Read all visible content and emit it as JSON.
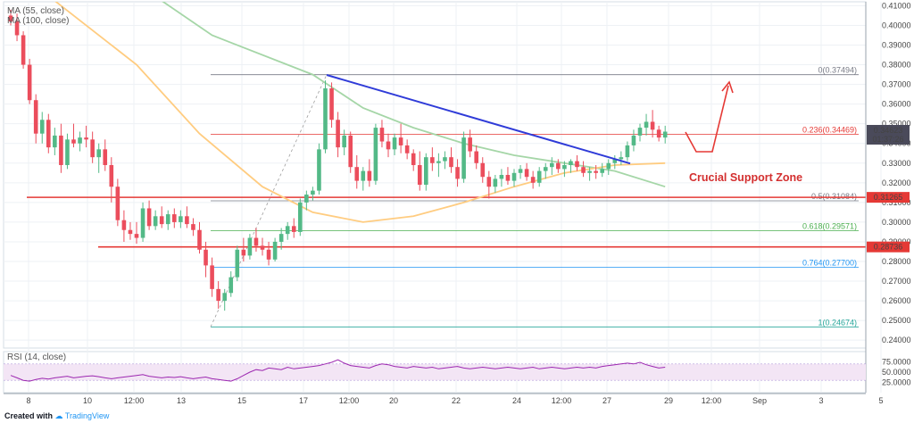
{
  "chart_data": {
    "type": "candlestick",
    "price_axis": {
      "min": 0.236,
      "max": 0.412,
      "ticks": [
        0.41,
        0.4,
        0.39,
        0.38,
        0.37,
        0.36,
        0.35,
        0.34,
        0.33,
        0.32,
        0.31,
        0.3,
        0.29,
        0.28,
        0.27,
        0.26,
        0.25,
        0.24
      ],
      "labels": [
        "0.41000",
        "0.40000",
        "0.39000",
        "0.38000",
        "0.37000",
        "0.36000",
        "0.35000",
        "0.34000",
        "0.33000",
        "0.32000",
        "0.31000",
        "0.30000",
        "0.29000",
        "0.28000",
        "0.27000",
        "0.26000",
        "0.25000",
        "0.24000"
      ]
    },
    "time_axis": {
      "labels": [
        "8",
        "10",
        "12:00",
        "13",
        "15",
        "17",
        "12:00",
        "20",
        "22",
        "24",
        "12:00",
        "27",
        "29",
        "12:00",
        "Sep",
        "3",
        "5"
      ]
    },
    "legend": [
      "MA (55, close)",
      "MA (100, close)"
    ],
    "last_price": "0.34623",
    "countdown": "01:37:26",
    "candles": [
      [
        0.405,
        0.408,
        0.4,
        0.402
      ],
      [
        0.402,
        0.406,
        0.392,
        0.395
      ],
      [
        0.395,
        0.397,
        0.378,
        0.38
      ],
      [
        0.38,
        0.383,
        0.36,
        0.362
      ],
      [
        0.362,
        0.365,
        0.34,
        0.345
      ],
      [
        0.345,
        0.356,
        0.34,
        0.352
      ],
      [
        0.352,
        0.355,
        0.335,
        0.338
      ],
      [
        0.338,
        0.348,
        0.334,
        0.344
      ],
      [
        0.344,
        0.35,
        0.325,
        0.329
      ],
      [
        0.329,
        0.345,
        0.327,
        0.342
      ],
      [
        0.342,
        0.35,
        0.338,
        0.34
      ],
      [
        0.34,
        0.346,
        0.336,
        0.343
      ],
      [
        0.343,
        0.349,
        0.338,
        0.342
      ],
      [
        0.342,
        0.346,
        0.33,
        0.333
      ],
      [
        0.333,
        0.34,
        0.325,
        0.337
      ],
      [
        0.337,
        0.342,
        0.326,
        0.329
      ],
      [
        0.329,
        0.333,
        0.31,
        0.318
      ],
      [
        0.318,
        0.322,
        0.298,
        0.301
      ],
      [
        0.301,
        0.306,
        0.29,
        0.296
      ],
      [
        0.296,
        0.3,
        0.291,
        0.294
      ],
      [
        0.294,
        0.3,
        0.289,
        0.292
      ],
      [
        0.292,
        0.31,
        0.29,
        0.307
      ],
      [
        0.307,
        0.311,
        0.296,
        0.298
      ],
      [
        0.298,
        0.306,
        0.296,
        0.303
      ],
      [
        0.303,
        0.308,
        0.297,
        0.299
      ],
      [
        0.299,
        0.306,
        0.296,
        0.304
      ],
      [
        0.304,
        0.307,
        0.297,
        0.3
      ],
      [
        0.3,
        0.306,
        0.297,
        0.303
      ],
      [
        0.303,
        0.308,
        0.297,
        0.299
      ],
      [
        0.299,
        0.302,
        0.293,
        0.296
      ],
      [
        0.296,
        0.3,
        0.284,
        0.286
      ],
      [
        0.286,
        0.29,
        0.272,
        0.278
      ],
      [
        0.278,
        0.282,
        0.262,
        0.266
      ],
      [
        0.266,
        0.27,
        0.256,
        0.26
      ],
      [
        0.26,
        0.266,
        0.255,
        0.264
      ],
      [
        0.264,
        0.275,
        0.262,
        0.272
      ],
      [
        0.272,
        0.288,
        0.27,
        0.286
      ],
      [
        0.286,
        0.292,
        0.28,
        0.283
      ],
      [
        0.283,
        0.294,
        0.281,
        0.292
      ],
      [
        0.292,
        0.297,
        0.285,
        0.288
      ],
      [
        0.288,
        0.292,
        0.283,
        0.286
      ],
      [
        0.286,
        0.29,
        0.278,
        0.281
      ],
      [
        0.281,
        0.292,
        0.28,
        0.29
      ],
      [
        0.29,
        0.297,
        0.286,
        0.294
      ],
      [
        0.294,
        0.3,
        0.291,
        0.298
      ],
      [
        0.298,
        0.302,
        0.292,
        0.295
      ],
      [
        0.295,
        0.312,
        0.293,
        0.31
      ],
      [
        0.31,
        0.316,
        0.306,
        0.314
      ],
      [
        0.314,
        0.318,
        0.311,
        0.316
      ],
      [
        0.316,
        0.34,
        0.314,
        0.337
      ],
      [
        0.337,
        0.372,
        0.335,
        0.368
      ],
      [
        0.368,
        0.371,
        0.348,
        0.352
      ],
      [
        0.352,
        0.356,
        0.333,
        0.338
      ],
      [
        0.338,
        0.347,
        0.334,
        0.344
      ],
      [
        0.344,
        0.346,
        0.325,
        0.328
      ],
      [
        0.328,
        0.334,
        0.317,
        0.321
      ],
      [
        0.321,
        0.328,
        0.316,
        0.326
      ],
      [
        0.326,
        0.332,
        0.318,
        0.321
      ],
      [
        0.321,
        0.35,
        0.319,
        0.348
      ],
      [
        0.348,
        0.352,
        0.338,
        0.341
      ],
      [
        0.341,
        0.345,
        0.333,
        0.337
      ],
      [
        0.337,
        0.345,
        0.334,
        0.343
      ],
      [
        0.343,
        0.35,
        0.335,
        0.339
      ],
      [
        0.339,
        0.342,
        0.332,
        0.335
      ],
      [
        0.335,
        0.337,
        0.326,
        0.329
      ],
      [
        0.329,
        0.336,
        0.316,
        0.319
      ],
      [
        0.319,
        0.335,
        0.316,
        0.333
      ],
      [
        0.333,
        0.338,
        0.326,
        0.33
      ],
      [
        0.33,
        0.335,
        0.323,
        0.331
      ],
      [
        0.331,
        0.336,
        0.327,
        0.333
      ],
      [
        0.333,
        0.338,
        0.325,
        0.328
      ],
      [
        0.328,
        0.332,
        0.318,
        0.322
      ],
      [
        0.322,
        0.346,
        0.32,
        0.343
      ],
      [
        0.343,
        0.347,
        0.333,
        0.336
      ],
      [
        0.336,
        0.339,
        0.327,
        0.33
      ],
      [
        0.33,
        0.333,
        0.32,
        0.323
      ],
      [
        0.323,
        0.326,
        0.312,
        0.318
      ],
      [
        0.318,
        0.324,
        0.315,
        0.322
      ],
      [
        0.322,
        0.327,
        0.318,
        0.324
      ],
      [
        0.324,
        0.328,
        0.319,
        0.321
      ],
      [
        0.321,
        0.327,
        0.318,
        0.325
      ],
      [
        0.325,
        0.329,
        0.322,
        0.327
      ],
      [
        0.327,
        0.33,
        0.321,
        0.323
      ],
      [
        0.323,
        0.326,
        0.317,
        0.32
      ],
      [
        0.32,
        0.328,
        0.318,
        0.326
      ],
      [
        0.326,
        0.33,
        0.322,
        0.328
      ],
      [
        0.328,
        0.333,
        0.324,
        0.33
      ],
      [
        0.33,
        0.332,
        0.325,
        0.327
      ],
      [
        0.327,
        0.331,
        0.323,
        0.329
      ],
      [
        0.329,
        0.332,
        0.325,
        0.331
      ],
      [
        0.331,
        0.334,
        0.326,
        0.328
      ],
      [
        0.328,
        0.331,
        0.323,
        0.325
      ],
      [
        0.325,
        0.328,
        0.321,
        0.326
      ],
      [
        0.326,
        0.329,
        0.322,
        0.325
      ],
      [
        0.325,
        0.33,
        0.323,
        0.327
      ],
      [
        0.327,
        0.332,
        0.324,
        0.33
      ],
      [
        0.33,
        0.334,
        0.327,
        0.332
      ],
      [
        0.332,
        0.336,
        0.329,
        0.333
      ],
      [
        0.333,
        0.341,
        0.331,
        0.339
      ],
      [
        0.339,
        0.347,
        0.336,
        0.344
      ],
      [
        0.344,
        0.35,
        0.341,
        0.348
      ],
      [
        0.348,
        0.355,
        0.344,
        0.351
      ],
      [
        0.351,
        0.357,
        0.343,
        0.347
      ],
      [
        0.347,
        0.349,
        0.341,
        0.343
      ],
      [
        0.343,
        0.349,
        0.34,
        0.346
      ]
    ],
    "ma55": [
      [
        0,
        0.455
      ],
      [
        16,
        0.43
      ],
      [
        32,
        0.395
      ],
      [
        48,
        0.375
      ],
      [
        56,
        0.358
      ],
      [
        64,
        0.348
      ],
      [
        72,
        0.34
      ],
      [
        80,
        0.334
      ],
      [
        88,
        0.33
      ],
      [
        96,
        0.326
      ],
      [
        104,
        0.318
      ]
    ],
    "ma100": [
      [
        0,
        0.43
      ],
      [
        10,
        0.405
      ],
      [
        20,
        0.38
      ],
      [
        30,
        0.345
      ],
      [
        40,
        0.318
      ],
      [
        48,
        0.305
      ],
      [
        56,
        0.3
      ],
      [
        64,
        0.303
      ],
      [
        72,
        0.31
      ],
      [
        80,
        0.318
      ],
      [
        88,
        0.325
      ],
      [
        96,
        0.329
      ],
      [
        104,
        0.33
      ]
    ],
    "fib_levels": [
      {
        "label": "0(0.37494)",
        "value": 0.37494,
        "color": "#787b86"
      },
      {
        "label": "0.236(0.34469)",
        "value": 0.34469,
        "color": "#e53935"
      },
      {
        "label": "0.5(0.31084)",
        "value": 0.31084,
        "color": "#787b86"
      },
      {
        "label": "0.618(0.29571)",
        "value": 0.29571,
        "color": "#4caf50"
      },
      {
        "label": "0.764(0.27700)",
        "value": 0.277,
        "color": "#2196f3"
      },
      {
        "label": "1(0.24674)",
        "value": 0.24674,
        "color": "#26a69a"
      }
    ],
    "horizontal_lines": [
      {
        "value": 0.3126,
        "label": "0.31265",
        "color": "#e53935"
      },
      {
        "value": 0.2874,
        "label": "0.28736",
        "color": "#e53935"
      }
    ],
    "annotation": "Crucial Support Zone",
    "rsi": {
      "label": "RSI (14, close)",
      "ticks": [
        "75.0000",
        "50.0000",
        "25.0000"
      ],
      "values": [
        42,
        36,
        30,
        28,
        32,
        35,
        33,
        36,
        38,
        40,
        36,
        38,
        40,
        41,
        39,
        36,
        34,
        36,
        38,
        40,
        42,
        44,
        40,
        38,
        36,
        38,
        37,
        39,
        36,
        34,
        36,
        38,
        34,
        32,
        30,
        28,
        34,
        42,
        50,
        56,
        54,
        60,
        58,
        56,
        62,
        58,
        60,
        62,
        64,
        66,
        70,
        74,
        80,
        72,
        66,
        64,
        62,
        60,
        66,
        70,
        68,
        64,
        62,
        60,
        64,
        62,
        60,
        62,
        58,
        60,
        62,
        64,
        60,
        58,
        60,
        62,
        60,
        58,
        60,
        62,
        60,
        58,
        60,
        62,
        58,
        60,
        62,
        60,
        58,
        60,
        62,
        60,
        62,
        60,
        64,
        66,
        68,
        70,
        72,
        70,
        74,
        68,
        64,
        60,
        62
      ]
    }
  },
  "footer": {
    "created": "Created with",
    "brand": "TradingView"
  }
}
